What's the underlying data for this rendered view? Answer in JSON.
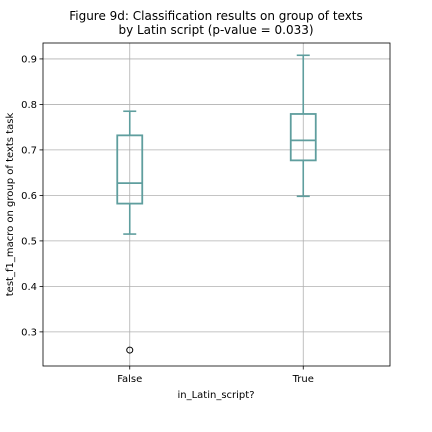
{
  "chart_data": {
    "type": "boxplot",
    "title_lines": [
      "Figure 9d: Classification results on group of texts",
      "by Latin script (p-value = 0.033)"
    ],
    "xlabel": "in_Latin_script?",
    "ylabel": "test_f1_macro on group of texts task",
    "categories": [
      "False",
      "True"
    ],
    "ylim": [
      0.225,
      0.935
    ],
    "yticks": [
      0.3,
      0.4,
      0.5,
      0.6,
      0.7,
      0.8,
      0.9
    ],
    "ytick_labels": [
      "0.3",
      "0.4",
      "0.5",
      "0.6",
      "0.7",
      "0.8",
      "0.9"
    ],
    "grid": true,
    "box_color": "#5f9e9e",
    "boxes": [
      {
        "category": "False",
        "whisker_low": 0.515,
        "q1": 0.582,
        "median": 0.627,
        "q3": 0.732,
        "whisker_high": 0.785,
        "outliers": [
          0.26
        ]
      },
      {
        "category": "True",
        "whisker_low": 0.598,
        "q1": 0.677,
        "median": 0.721,
        "q3": 0.779,
        "whisker_high": 0.908,
        "outliers": []
      }
    ]
  }
}
